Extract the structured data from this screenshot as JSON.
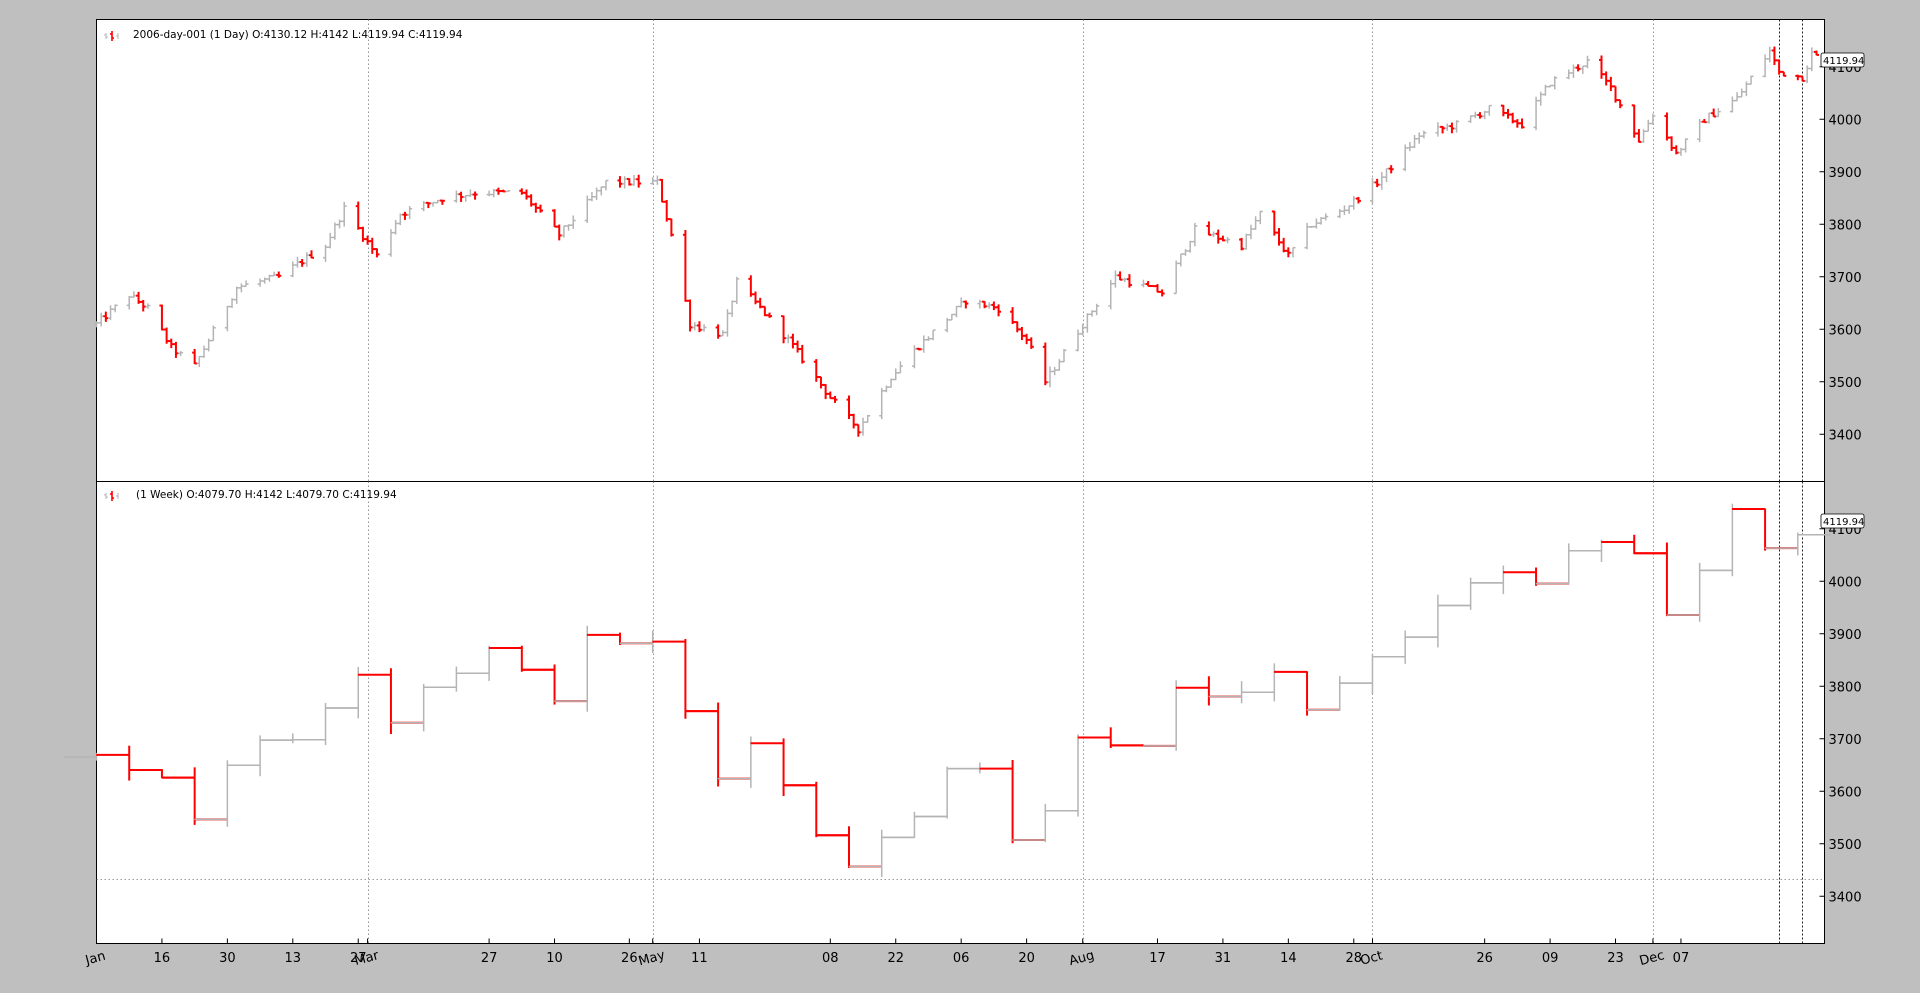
{
  "colors": {
    "up": "#b4b4b4",
    "down": "#ff0000",
    "panel": "#ffffff",
    "background": "#bfbfbf"
  },
  "chart_data": [
    {
      "type": "ohlc",
      "legend": "2006-day-001 (1 Day) O:4130.12 H:4142 L:4119.94 C:4119.94",
      "last_value_label": "4119.94",
      "ylim": [
        3310,
        4190
      ],
      "yticks": [
        3400,
        3500,
        3600,
        3700,
        3800,
        3900,
        4000,
        4100
      ],
      "grid": "vertical",
      "anchors": [
        [
          "2006-01-02",
          3610
        ],
        [
          "2006-01-09",
          3665
        ],
        [
          "2006-01-13",
          3640
        ],
        [
          "2006-01-18",
          3565
        ],
        [
          "2006-01-23",
          3530
        ],
        [
          "2006-02-01",
          3680
        ],
        [
          "2006-02-10",
          3700
        ],
        [
          "2006-02-20",
          3760
        ],
        [
          "2006-02-24",
          3830
        ],
        [
          "2006-03-03",
          3740
        ],
        [
          "2006-03-08",
          3820
        ],
        [
          "2006-03-17",
          3850
        ],
        [
          "2006-03-24",
          3860
        ],
        [
          "2006-04-03",
          3860
        ],
        [
          "2006-04-11",
          3780
        ],
        [
          "2006-04-21",
          3880
        ],
        [
          "2006-05-02",
          3880
        ],
        [
          "2006-05-05",
          3780
        ],
        [
          "2006-05-09",
          3610
        ],
        [
          "2006-05-16",
          3590
        ],
        [
          "2006-05-19",
          3690
        ],
        [
          "2006-05-25",
          3630
        ],
        [
          "2006-05-30",
          3580
        ],
        [
          "2006-06-08",
          3470
        ],
        [
          "2006-06-14",
          3410
        ],
        [
          "2006-06-21",
          3510
        ],
        [
          "2006-06-26",
          3560
        ],
        [
          "2006-07-07",
          3655
        ],
        [
          "2006-07-14",
          3640
        ],
        [
          "2006-07-20",
          3580
        ],
        [
          "2006-07-24",
          3500
        ],
        [
          "2006-08-01",
          3610
        ],
        [
          "2006-08-08",
          3700
        ],
        [
          "2006-08-18",
          3670
        ],
        [
          "2006-08-25",
          3790
        ],
        [
          "2006-09-04",
          3760
        ],
        [
          "2006-09-08",
          3820
        ],
        [
          "2006-09-14",
          3740
        ],
        [
          "2006-09-19",
          3800
        ],
        [
          "2006-09-26",
          3830
        ],
        [
          "2006-10-03",
          3880
        ],
        [
          "2006-10-12",
          3970
        ],
        [
          "2006-10-20",
          3990
        ],
        [
          "2006-10-27",
          4020
        ],
        [
          "2006-11-03",
          3990
        ],
        [
          "2006-11-09",
          4070
        ],
        [
          "2006-11-17",
          4110
        ],
        [
          "2006-11-22",
          4060
        ],
        [
          "2006-11-28",
          3960
        ],
        [
          "2006-12-01",
          4010
        ],
        [
          "2006-12-06",
          3935
        ],
        [
          "2006-12-12",
          4000
        ],
        [
          "2006-12-19",
          4040
        ],
        [
          "2006-12-26",
          4130
        ],
        [
          "2006-12-28",
          4090
        ],
        [
          "2007-01-02",
          4080
        ],
        [
          "2007-01-04",
          4125
        ],
        [
          "2007-01-05",
          4120
        ]
      ]
    },
    {
      "type": "ohlc",
      "legend": "(1 Week) O:4079.70 H:4142 L:4079.70 C:4119.94",
      "last_value_label": "4119.94",
      "ylim": [
        3310,
        4190
      ],
      "yticks": [
        3400,
        3500,
        3600,
        3700,
        3800,
        3900,
        4000,
        4100
      ],
      "grid": "vertical",
      "hline": 3432,
      "anchors": [
        [
          "2006-01-02",
          3665
        ],
        [
          "2006-01-16",
          3630
        ],
        [
          "2006-01-23",
          3550
        ],
        [
          "2006-02-01",
          3685
        ],
        [
          "2006-02-13",
          3700
        ],
        [
          "2006-02-27",
          3830
        ],
        [
          "2006-03-06",
          3735
        ],
        [
          "2006-03-13",
          3800
        ],
        [
          "2006-03-20",
          3830
        ],
        [
          "2006-03-27",
          3870
        ],
        [
          "2006-04-10",
          3780
        ],
        [
          "2006-04-17",
          3890
        ],
        [
          "2006-05-01",
          3880
        ],
        [
          "2006-05-08",
          3750
        ],
        [
          "2006-05-15",
          3625
        ],
        [
          "2006-05-22",
          3700
        ],
        [
          "2006-06-05",
          3520
        ],
        [
          "2006-06-12",
          3465
        ],
        [
          "2006-06-26",
          3550
        ],
        [
          "2006-07-03",
          3650
        ],
        [
          "2006-07-10",
          3650
        ],
        [
          "2006-07-17",
          3510
        ],
        [
          "2006-07-24",
          3560
        ],
        [
          "2006-07-31",
          3710
        ],
        [
          "2006-08-14",
          3680
        ],
        [
          "2006-08-21",
          3790
        ],
        [
          "2006-09-04",
          3780
        ],
        [
          "2006-09-11",
          3820
        ],
        [
          "2006-09-18",
          3750
        ],
        [
          "2006-09-25",
          3810
        ],
        [
          "2006-10-09",
          3900
        ],
        [
          "2006-10-23",
          4000
        ],
        [
          "2006-10-30",
          4015
        ],
        [
          "2006-11-06",
          3990
        ],
        [
          "2006-11-13",
          4060
        ],
        [
          "2006-11-20",
          4070
        ],
        [
          "2006-11-27",
          4045
        ],
        [
          "2006-12-04",
          3930
        ],
        [
          "2006-12-11",
          4020
        ],
        [
          "2006-12-18",
          4140
        ],
        [
          "2006-12-25",
          4070
        ],
        [
          "2007-01-01",
          4080
        ],
        [
          "2007-01-05",
          4120
        ]
      ]
    }
  ],
  "xaxis": {
    "start": "2006-01-02",
    "end": "2007-01-05",
    "ticks": [
      [
        "2006-01-02",
        "Jan"
      ],
      [
        "2006-01-16",
        "16"
      ],
      [
        "2006-01-30",
        "30"
      ],
      [
        "2006-02-13",
        "13"
      ],
      [
        "2006-02-27",
        "27"
      ],
      [
        "2006-03-01",
        "Mar"
      ],
      [
        "2006-03-27",
        "27"
      ],
      [
        "2006-04-10",
        "10"
      ],
      [
        "2006-04-26",
        "26"
      ],
      [
        "2006-05-11",
        "11"
      ],
      [
        "2006-05-01",
        "May"
      ],
      [
        "2006-06-08",
        "08"
      ],
      [
        "2006-06-22",
        "22"
      ],
      [
        "2006-07-06",
        "06"
      ],
      [
        "2006-07-20",
        "20"
      ],
      [
        "2006-08-01",
        "Aug"
      ],
      [
        "2006-08-17",
        "17"
      ],
      [
        "2006-08-31",
        "31"
      ],
      [
        "2006-09-14",
        "14"
      ],
      [
        "2006-09-28",
        "28"
      ],
      [
        "2006-10-02",
        "Oct"
      ],
      [
        "2006-10-26",
        "26"
      ],
      [
        "2006-11-09",
        "09"
      ],
      [
        "2006-11-23",
        "23"
      ],
      [
        "2006-12-07",
        "07"
      ],
      [
        "2006-12-01",
        "Dec"
      ]
    ]
  }
}
